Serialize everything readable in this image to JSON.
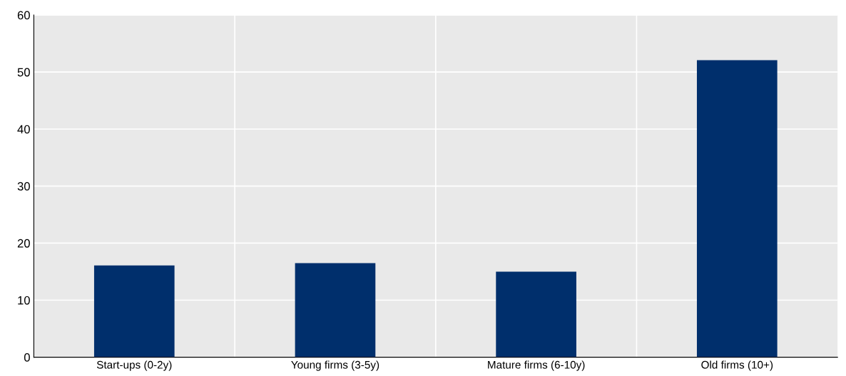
{
  "chart_data": {
    "type": "bar",
    "categories": [
      "Start-ups (0-2y)",
      "Young firms (3-5y)",
      "Mature firms (6-10y)",
      "Old firms (10+)"
    ],
    "values": [
      16.1,
      16.5,
      15.0,
      52.1
    ],
    "color": "#002f6c",
    "ylim": [
      0,
      60
    ],
    "yticks": [
      0,
      10,
      20,
      30,
      40,
      50,
      60
    ],
    "grid": true
  }
}
